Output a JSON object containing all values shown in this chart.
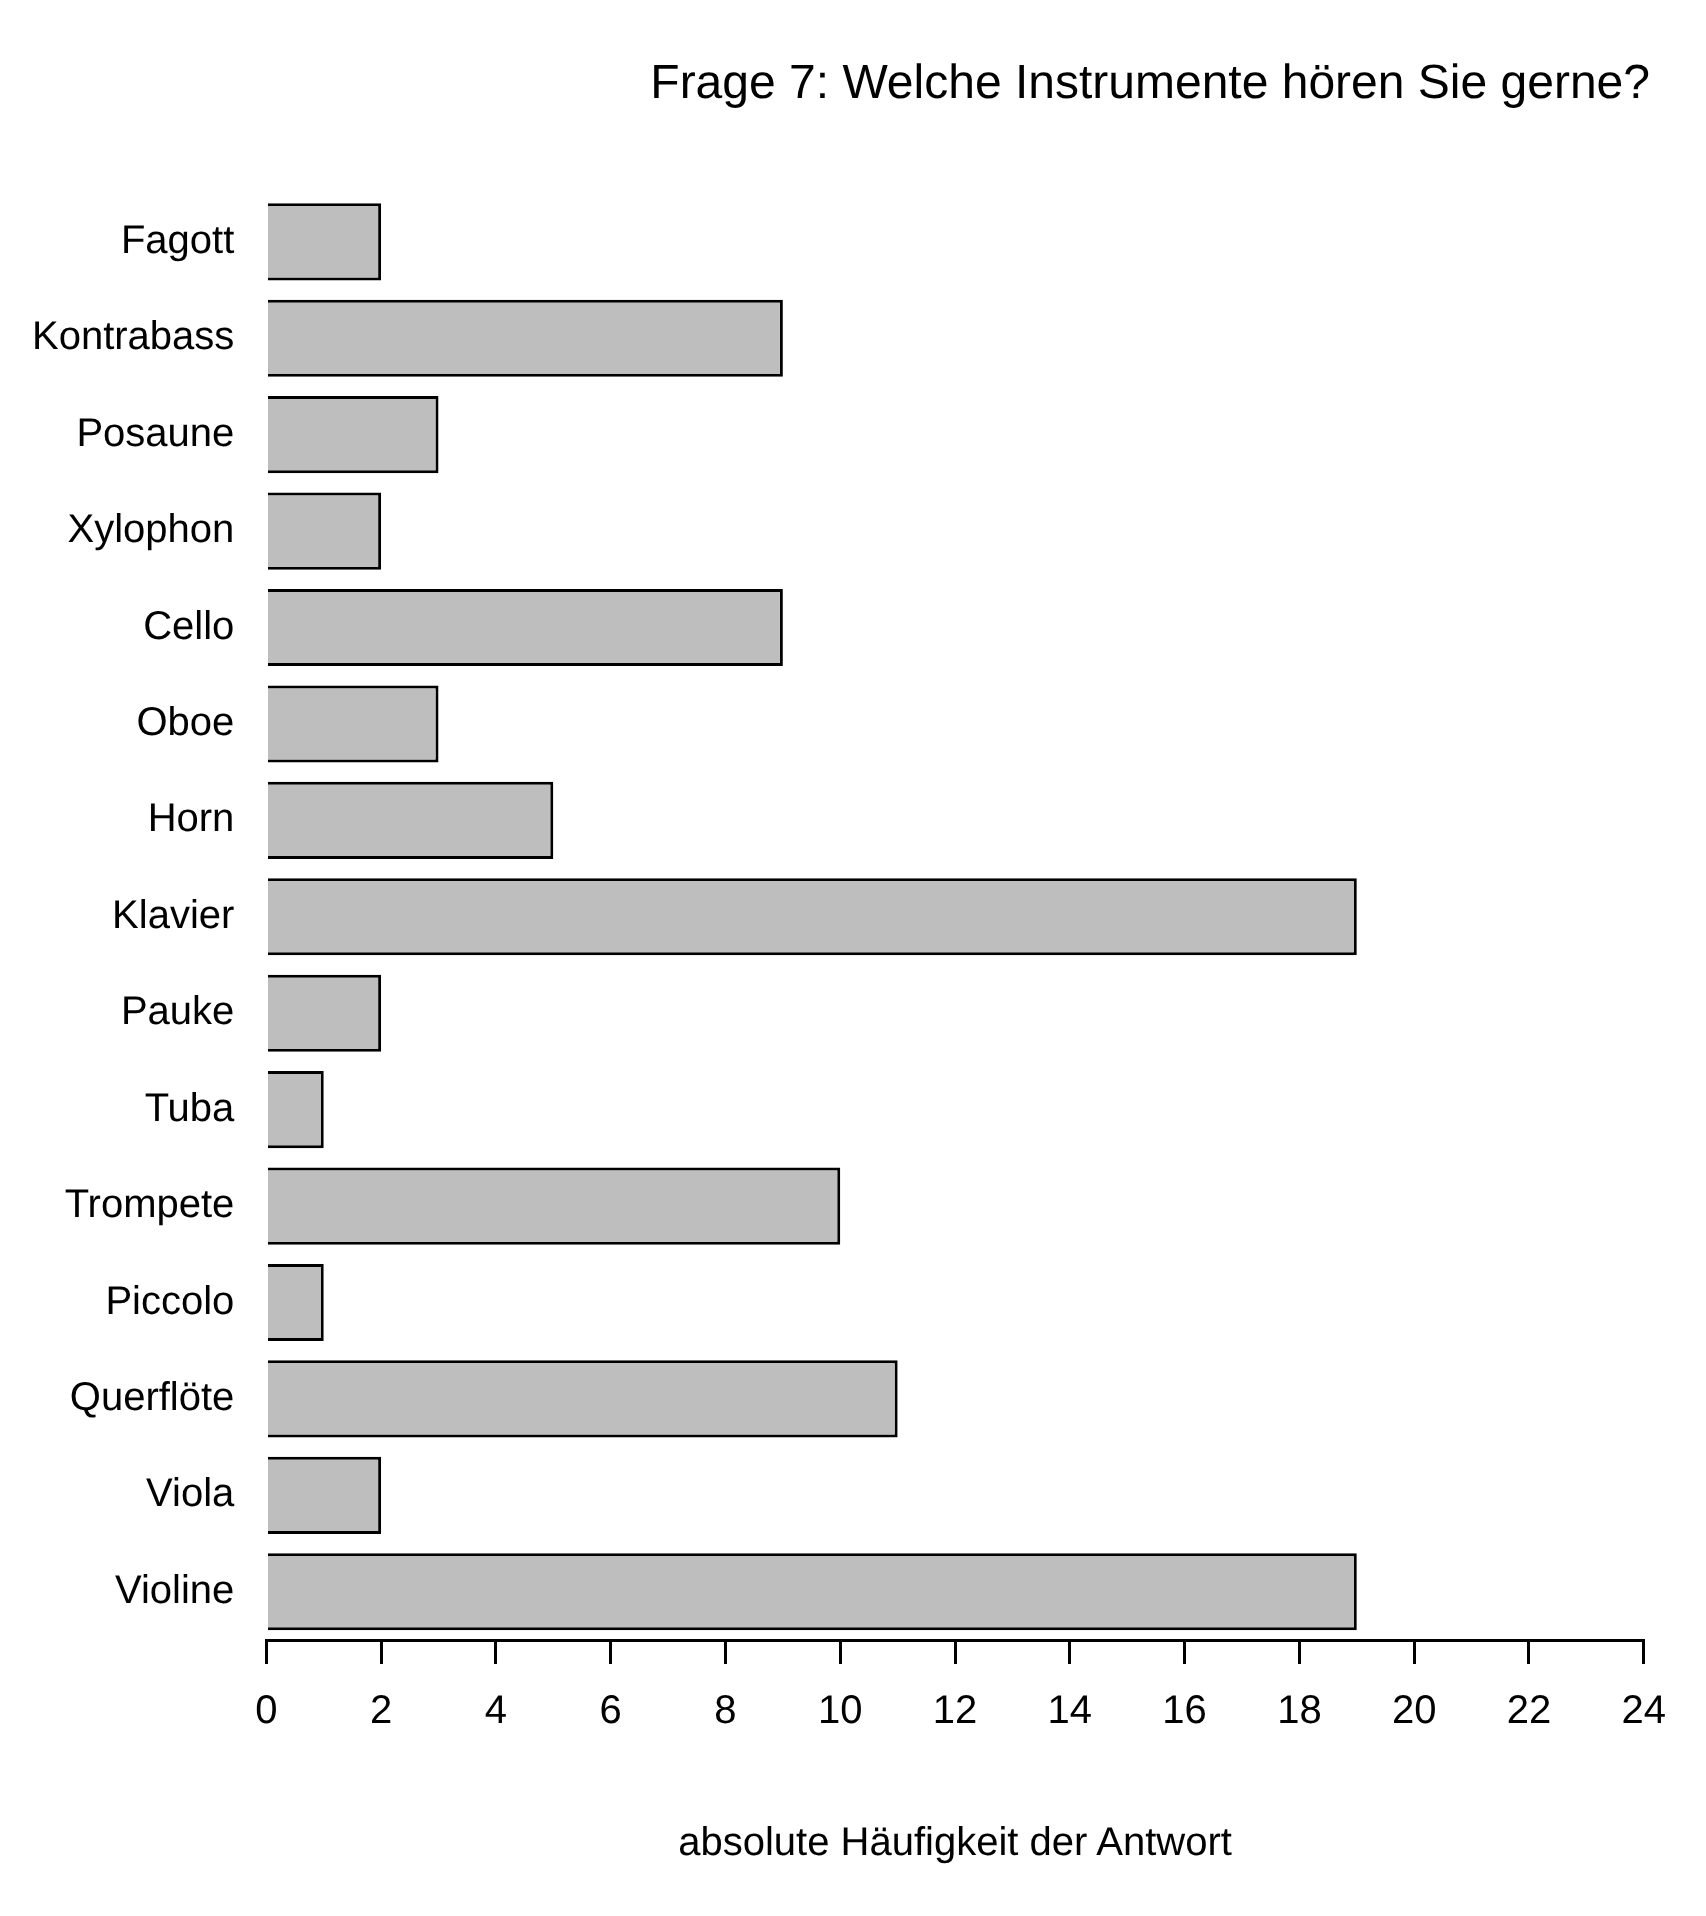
{
  "chart_data": {
    "type": "bar",
    "orientation": "horizontal",
    "title": "Frage 7: Welche Instrumente hören Sie gerne?",
    "xlabel": "absolute Häufigkeit der Antwort",
    "categories": [
      "Fagott",
      "Kontrabass",
      "Posaune",
      "Xylophon",
      "Cello",
      "Oboe",
      "Horn",
      "Klavier",
      "Pauke",
      "Tuba",
      "Trompete",
      "Piccolo",
      "Querflöte",
      "Viola",
      "Violine"
    ],
    "values": [
      2,
      9,
      3,
      2,
      9,
      3,
      5,
      19,
      2,
      1,
      10,
      1,
      11,
      2,
      19
    ],
    "color": "#bebebe",
    "xlim": [
      0,
      24
    ],
    "xticks": [
      0,
      2,
      4,
      6,
      8,
      10,
      12,
      14,
      16,
      18,
      20,
      22,
      24
    ],
    "grid": false,
    "legend": false
  }
}
